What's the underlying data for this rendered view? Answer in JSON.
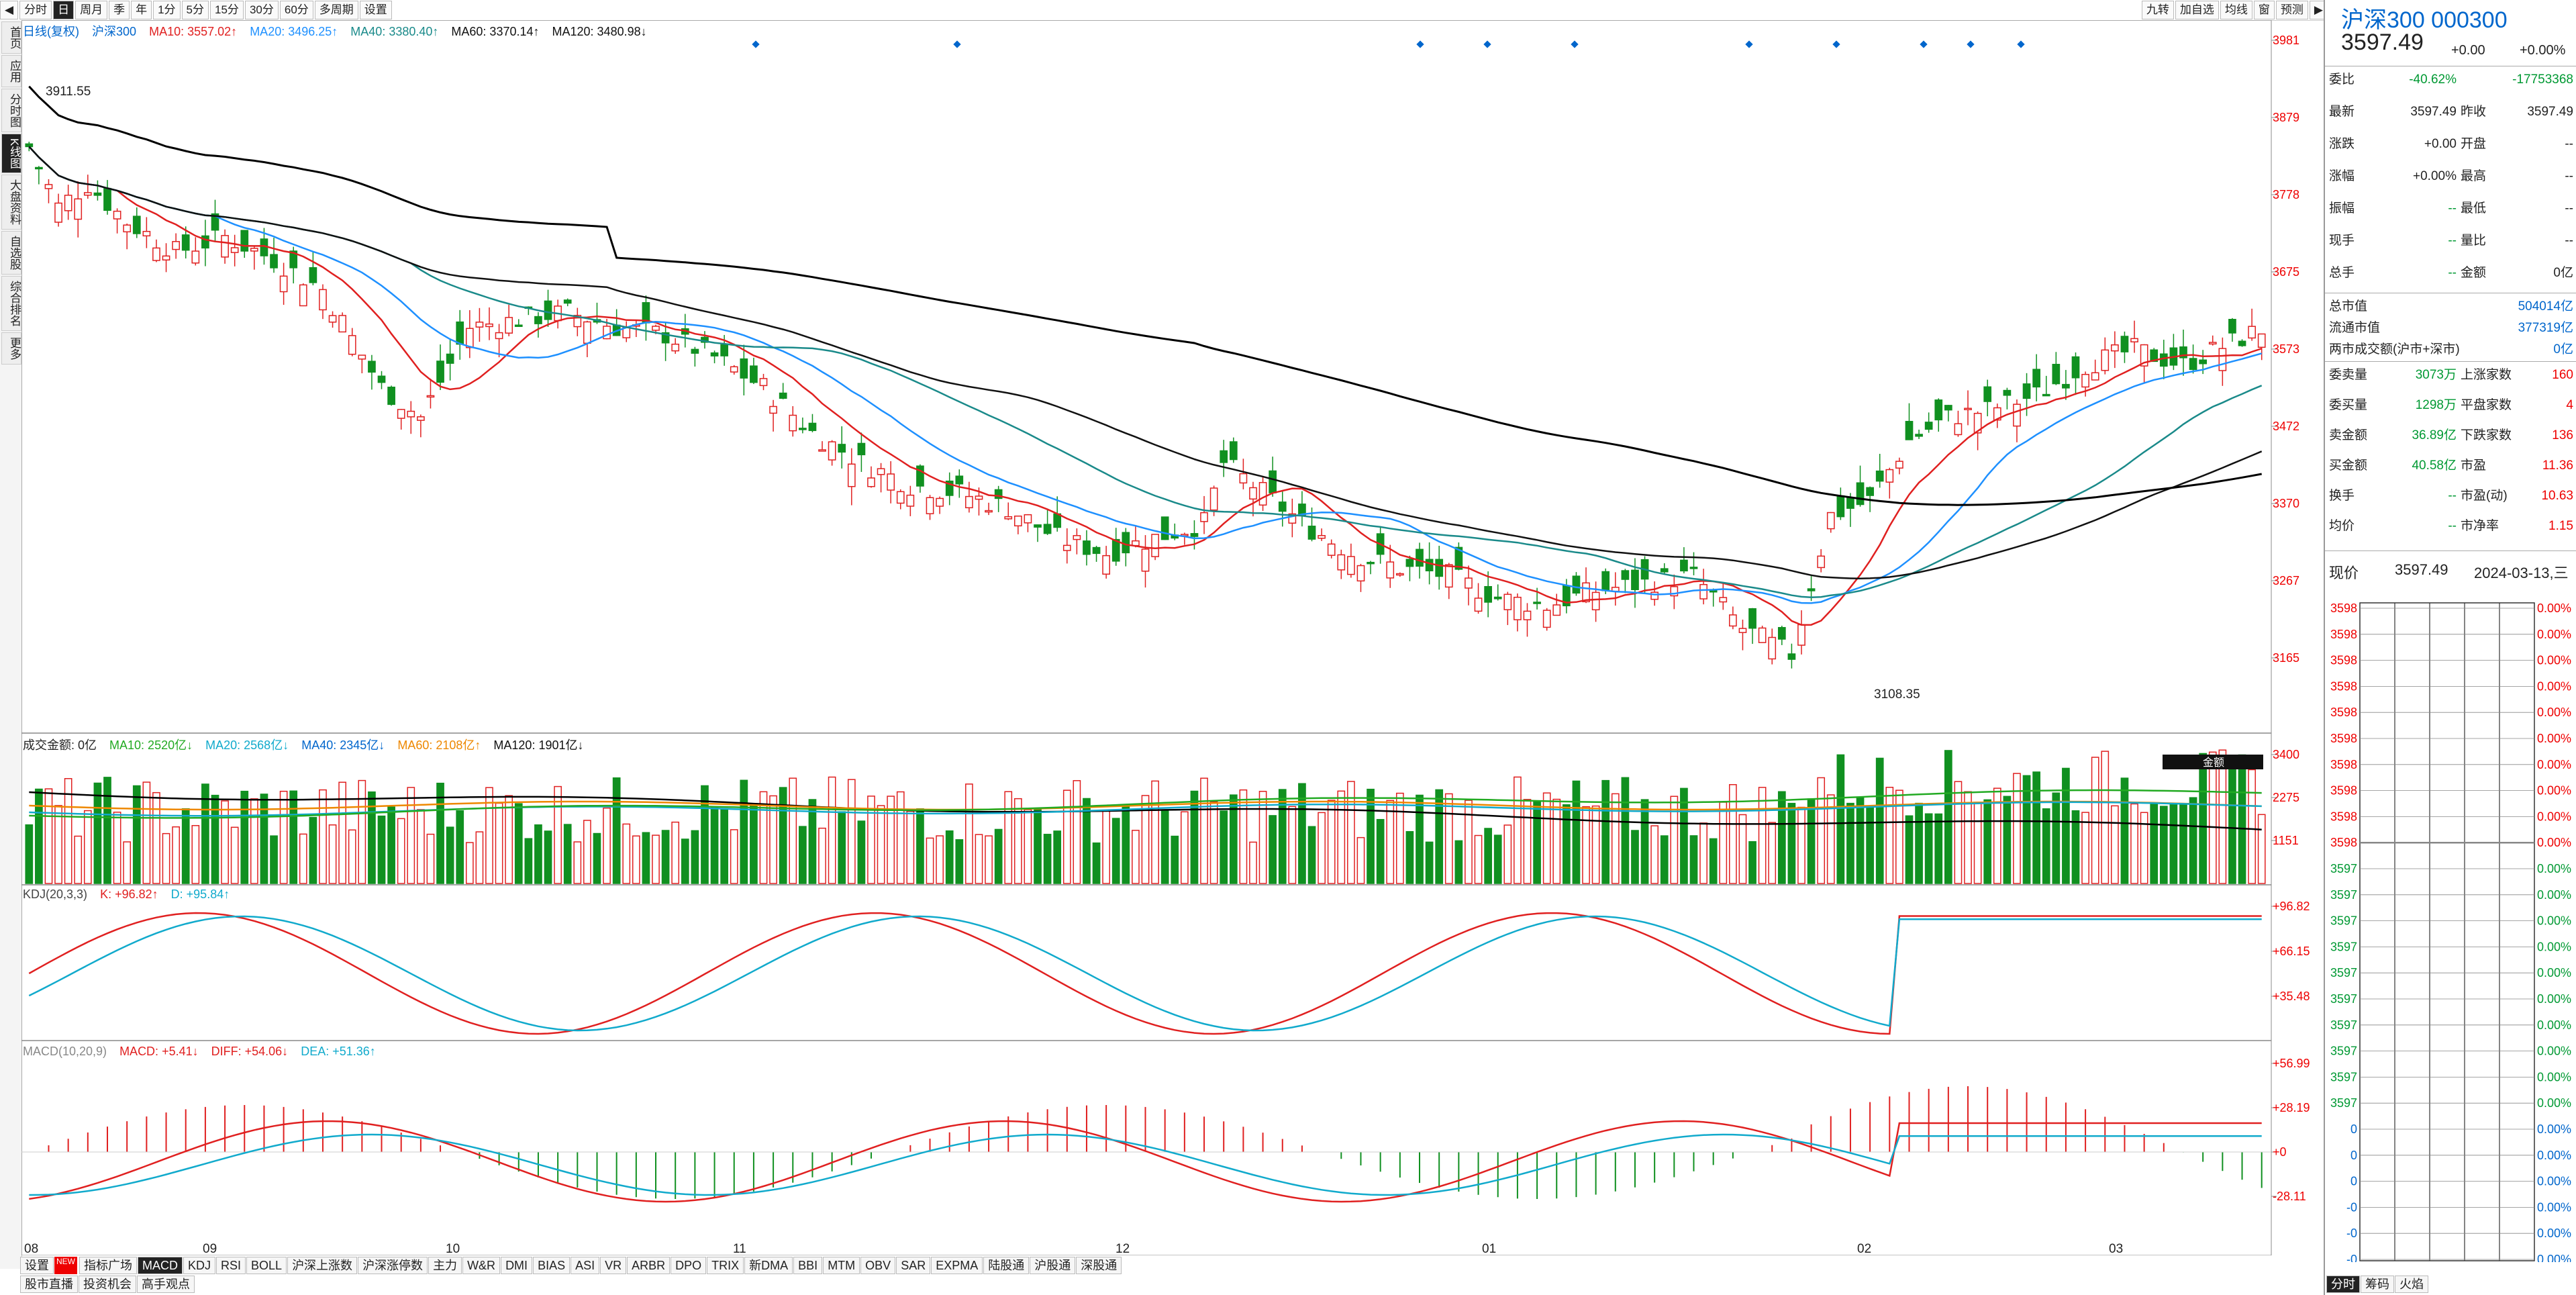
{
  "toolbar": {
    "items": [
      "分时",
      "日",
      "周月",
      "季",
      "年",
      "1分",
      "5分",
      "15分",
      "30分",
      "60分",
      "多周期",
      "设置"
    ],
    "active_index": 1,
    "right_items": [
      "九转",
      "加自选",
      "均线",
      "窗",
      "预测"
    ]
  },
  "left_nav": {
    "items": [
      "首页",
      "应用",
      "分时图",
      "K线图",
      "大盘资料",
      "自选股",
      "综合排名",
      "更多"
    ],
    "active_index": 3
  },
  "price_chart": {
    "legend": {
      "name": "日线(复权)",
      "index": "沪深300",
      "ma10": "MA10: 3557.02↑",
      "ma20": "MA20: 3496.25↑",
      "ma40": "MA40: 3380.40↑",
      "ma60": "MA60: 3370.14↑",
      "ma120": "MA120: 3480.98↓"
    },
    "y_ticks": [
      "3981",
      "3879",
      "3778",
      "3675",
      "3573",
      "3472",
      "3370",
      "3267",
      "3165"
    ],
    "high_label": "3911.55",
    "low_label": "3108.35",
    "x_labels": [
      "08",
      "09",
      "10",
      "11",
      "12",
      "01",
      "02",
      "03"
    ]
  },
  "volume_chart": {
    "legend": {
      "name": "成交金额: 0亿",
      "ma10": "MA10: 2520亿↓",
      "ma20": "MA20: 2568亿↓",
      "ma40": "MA40: 2345亿↓",
      "ma60": "MA60: 2108亿↑",
      "ma120": "MA120: 1901亿↓"
    },
    "y_ticks": [
      "3400",
      "2275",
      "1151"
    ],
    "box_label": "金额"
  },
  "kdj_chart": {
    "legend": {
      "name": "KDJ(20,3,3)",
      "k": "K: +96.82↑",
      "d": "D: +95.84↑"
    },
    "y_ticks": [
      "+96.82",
      "+66.15",
      "+35.48"
    ]
  },
  "macd_chart": {
    "legend": {
      "name": "MACD(10,20,9)",
      "macd": "MACD: +5.41↓",
      "diff": "DIFF: +54.06↓",
      "dea": "DEA: +51.36↑"
    },
    "y_ticks": [
      "+56.99",
      "+28.19",
      "+0",
      "-28.11"
    ]
  },
  "bottom_tabs": [
    "设置",
    "指标广场",
    "MACD",
    "KDJ",
    "RSI",
    "BOLL",
    "沪深上涨数",
    "沪深涨停数",
    "主力",
    "W&R",
    "DMI",
    "BIAS",
    "ASI",
    "VR",
    "ARBR",
    "DPO",
    "TRIX",
    "新DMA",
    "BBI",
    "MTM",
    "OBV",
    "SAR",
    "EXPMA",
    "陆股通",
    "沪股通",
    "深股通"
  ],
  "bottom_tabs_active": 2,
  "bottom_tabs2": [
    "股市直播",
    "投资机会",
    "高手观点"
  ],
  "new_badge": "NEW",
  "panel": {
    "title": "沪深300 000300",
    "price": "3597.49",
    "change": "+0.00",
    "change_pct": "+0.00%",
    "rows1": [
      {
        "l": "委比",
        "v1": "-40.62%",
        "v2": "-17753368"
      },
      {
        "l": "最新",
        "v1": "3597.49",
        "l2": "昨收",
        "v2": "3597.49"
      },
      {
        "l": "涨跌",
        "v1": "+0.00",
        "l2": "开盘",
        "v2": "--"
      },
      {
        "l": "涨幅",
        "v1": "+0.00%",
        "l2": "最高",
        "v2": "--"
      },
      {
        "l": "振幅",
        "v1": "--",
        "l2": "最低",
        "v2": "--"
      },
      {
        "l": "现手",
        "v1": "--",
        "l2": "量比",
        "v2": "--"
      },
      {
        "l": "总手",
        "v1": "--",
        "l2": "金额",
        "v2": "0亿"
      }
    ],
    "rows2": [
      {
        "l": "总市值",
        "v2": "504014亿"
      },
      {
        "l": "流通市值",
        "v2": "377319亿"
      },
      {
        "l": "两市成交额(沪市+深市)",
        "v2": "0亿"
      }
    ],
    "rows3": [
      {
        "l": "委卖量",
        "v1": "3073万",
        "l2": "上涨家数",
        "v2": "160"
      },
      {
        "l": "委买量",
        "v1": "1298万",
        "l2": "平盘家数",
        "v2": "4"
      },
      {
        "l": "卖金额",
        "v1": "36.89亿",
        "l2": "下跌家数",
        "v2": "136"
      },
      {
        "l": "买金额",
        "v1": "40.58亿",
        "l2": "市盈",
        "v2": "11.36"
      },
      {
        "l": "换手",
        "v1": "--",
        "l2": "市盈(动)",
        "v2": "10.63"
      },
      {
        "l": "均价",
        "v1": "--",
        "l2": "市净率",
        "v2": "1.15"
      }
    ],
    "now_label": "现价",
    "now_price": "3597.49",
    "now_date": "2024-03-13,三",
    "mini_left": [
      "3598",
      "3598",
      "3598",
      "3598",
      "3598",
      "3598",
      "3598",
      "3598",
      "3598",
      "3598",
      "3597",
      "3597",
      "3597",
      "3597",
      "3597",
      "3597",
      "3597",
      "3597",
      "3597",
      "3597",
      "0",
      "0",
      "0",
      "-0",
      "-0",
      "-0",
      "-0",
      "-0"
    ],
    "mini_right": "0.00%",
    "mini_bottom_tabs": [
      "分时",
      "筹码",
      "火焰"
    ]
  },
  "colors": {
    "up": "#e02020",
    "down": "#109020",
    "ma10": "#e02020",
    "ma20": "#1e90ff",
    "ma40": "#1a8a8a",
    "ma120": "#000000"
  }
}
